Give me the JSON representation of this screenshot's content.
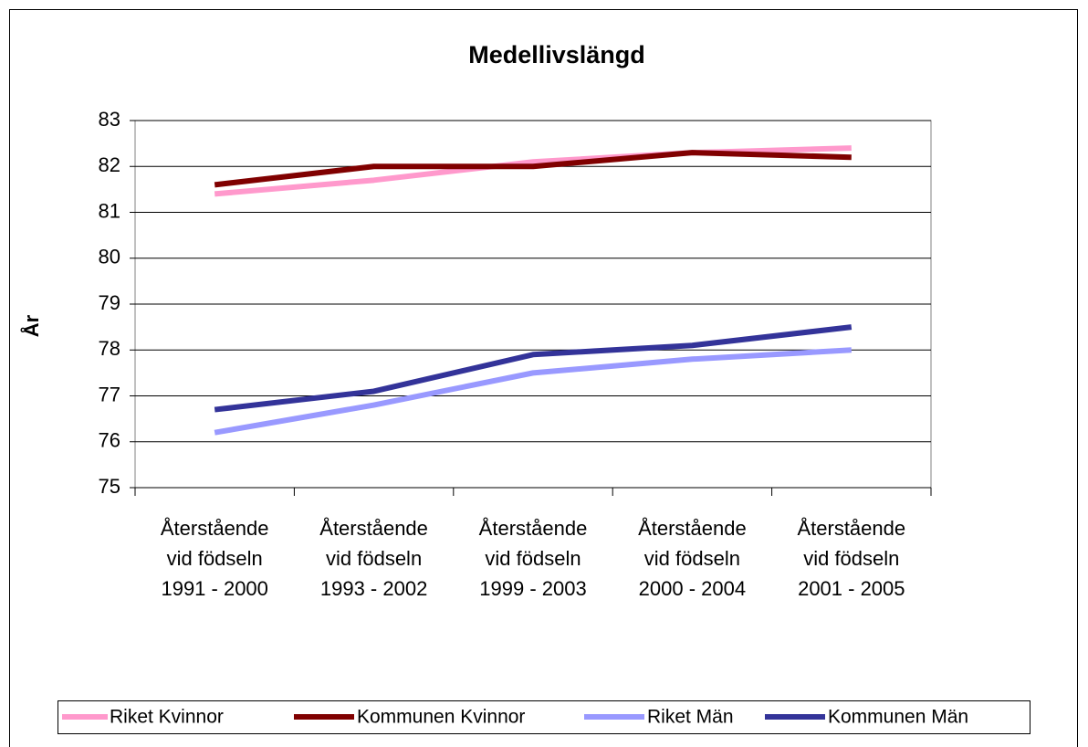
{
  "chart_data": {
    "type": "line",
    "title": "Medellivslängd",
    "y_label": "År",
    "categories": [
      "Återstående\nvid födseln\n1991 - 2000",
      "Återstående\nvid födseln\n1993 - 2002",
      "Återstående\nvid födseln\n1999 - 2003",
      "Återstående\nvid födseln\n2000 - 2004",
      "Återstående\nvid födseln\n2001 - 2005"
    ],
    "series": [
      {
        "name": "Riket Kvinnor",
        "color": "#ff99cc",
        "values": [
          81.4,
          81.7,
          82.1,
          82.3,
          82.4
        ]
      },
      {
        "name": "Kommunen Kvinnor",
        "color": "#800000",
        "values": [
          81.6,
          82.0,
          82.0,
          82.3,
          82.2
        ]
      },
      {
        "name": "Riket Män",
        "color": "#9999ff",
        "values": [
          76.2,
          76.8,
          77.5,
          77.8,
          78.0
        ]
      },
      {
        "name": "Kommunen Män",
        "color": "#333399",
        "values": [
          76.7,
          77.1,
          77.9,
          78.1,
          78.5
        ]
      }
    ],
    "ylim": [
      75,
      83
    ],
    "yticks": [
      75,
      76,
      77,
      78,
      79,
      80,
      81,
      82,
      83
    ],
    "grid": true,
    "legend": "bottom"
  }
}
